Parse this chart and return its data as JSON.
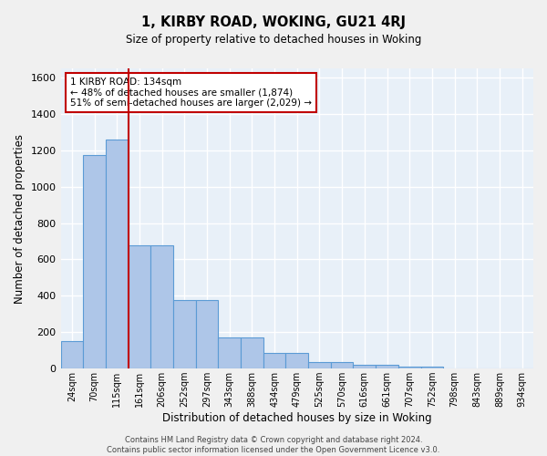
{
  "title": "1, KIRBY ROAD, WOKING, GU21 4RJ",
  "subtitle": "Size of property relative to detached houses in Woking",
  "xlabel": "Distribution of detached houses by size in Woking",
  "ylabel": "Number of detached properties",
  "bin_labels": [
    "24sqm",
    "70sqm",
    "115sqm",
    "161sqm",
    "206sqm",
    "252sqm",
    "297sqm",
    "343sqm",
    "388sqm",
    "434sqm",
    "479sqm",
    "525sqm",
    "570sqm",
    "616sqm",
    "661sqm",
    "707sqm",
    "752sqm",
    "798sqm",
    "843sqm",
    "889sqm",
    "934sqm"
  ],
  "bar_heights": [
    150,
    1175,
    1260,
    680,
    680,
    375,
    375,
    170,
    170,
    85,
    85,
    35,
    35,
    20,
    20,
    10,
    10,
    0,
    0,
    0,
    0
  ],
  "bar_color": "#aec6e8",
  "bar_edge_color": "#5b9bd5",
  "background_color": "#e8f0f8",
  "grid_color": "#ffffff",
  "vline_x": 2.5,
  "vline_color": "#c00000",
  "annotation_text": "1 KIRBY ROAD: 134sqm\n← 48% of detached houses are smaller (1,874)\n51% of semi-detached houses are larger (2,029) →",
  "annotation_box_color": "#ffffff",
  "annotation_box_edge": "#c00000",
  "ylim": [
    0,
    1650
  ],
  "yticks": [
    0,
    200,
    400,
    600,
    800,
    1000,
    1200,
    1400,
    1600
  ],
  "footer_line1": "Contains HM Land Registry data © Crown copyright and database right 2024.",
  "footer_line2": "Contains public sector information licensed under the Open Government Licence v3.0."
}
